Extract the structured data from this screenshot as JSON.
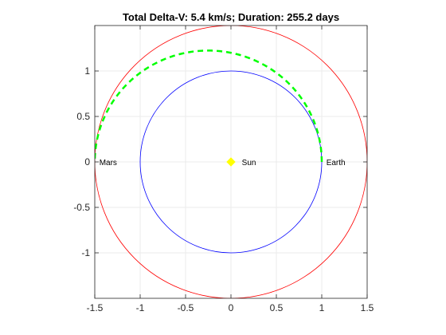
{
  "chart_data": {
    "type": "line",
    "title": "Total Delta-V: 5.4 km/s; Duration: 255.2 days",
    "xlabel": "",
    "ylabel": "",
    "xlim": [
      -1.5,
      1.5
    ],
    "ylim": [
      -1.5,
      1.5
    ],
    "grid": true,
    "axis_equal": true,
    "xticks": [
      -1.5,
      -1,
      -0.5,
      0,
      0.5,
      1,
      1.5
    ],
    "xtick_labels": [
      "-1.5",
      "-1",
      "-0.5",
      "0",
      "0.5",
      "1",
      "1.5"
    ],
    "yticks": [
      -1,
      -0.5,
      0,
      0.5,
      1
    ],
    "ytick_labels": [
      "-1",
      "-0.5",
      "0",
      "0.5",
      "1"
    ],
    "series": [
      {
        "kind": "circle",
        "center": [
          0,
          0
        ],
        "radius": 1.0,
        "color": "#0000ff",
        "style": "solid"
      },
      {
        "kind": "circle",
        "center": [
          0,
          0
        ],
        "radius": 1.5,
        "color": "#ff0000",
        "style": "solid"
      },
      {
        "kind": "transfer-arc",
        "start_angle_deg": 0,
        "end_angle_deg": 180,
        "perihelion": 1.0,
        "aphelion": 1.5,
        "color": "#00ff00",
        "style": "dashed"
      },
      {
        "kind": "point",
        "x": 0,
        "y": 0,
        "color": "#ffff00",
        "marker": "diamond"
      }
    ],
    "annotations": [
      {
        "text": "Sun",
        "x": 0.12,
        "y": 0
      },
      {
        "text": "Earth",
        "x": 1.05,
        "y": 0
      },
      {
        "text": "Mars",
        "x": -1.45,
        "y": 0
      }
    ],
    "colors": {
      "axes": "#262626",
      "grid": "#ebebeb",
      "earth_orbit": "#0000ff",
      "mars_orbit": "#ff0000",
      "transfer": "#00ff00",
      "sun": "#ffff00"
    }
  }
}
